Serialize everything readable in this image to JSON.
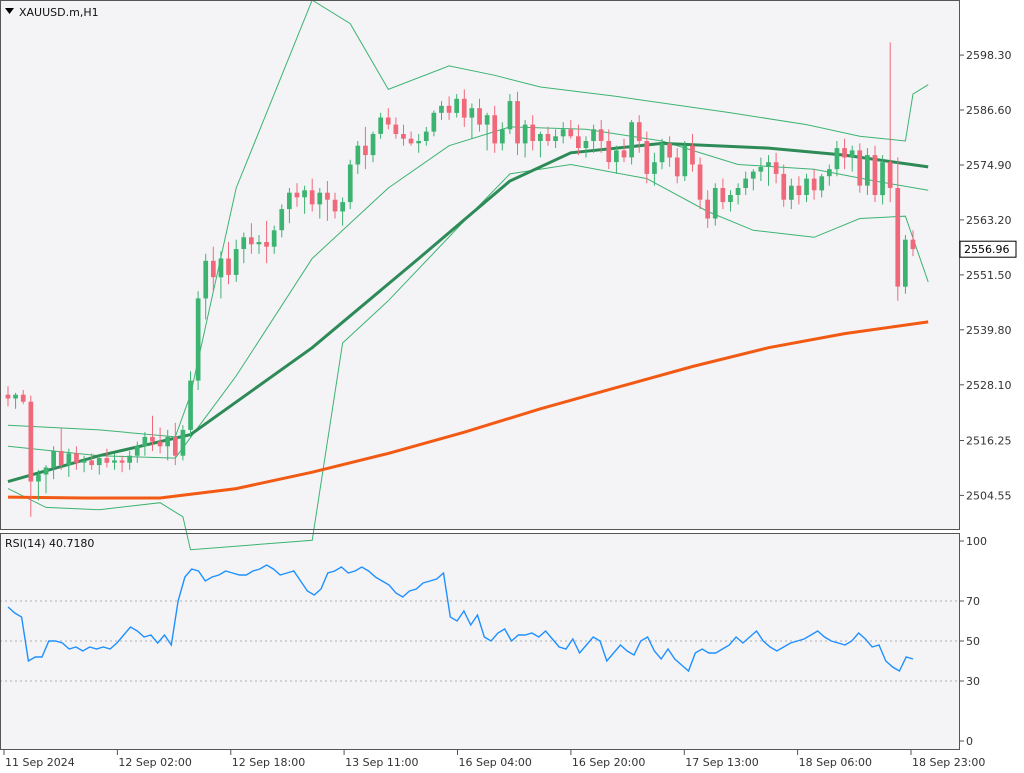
{
  "chart_data": [
    {
      "type": "candlestick",
      "title": "XAUUSD.m,H1",
      "symbol": "XAUUSD.m",
      "timeframe": "H1",
      "y_ticks": [
        2504.55,
        2516.25,
        2528.1,
        2539.8,
        2551.5,
        2563.2,
        2574.9,
        2586.6,
        2598.3
      ],
      "ylim": [
        2497.4,
        2609.6
      ],
      "x_labels": [
        "11 Sep 2024",
        "12 Sep 02:00",
        "12 Sep 18:00",
        "13 Sep 11:00",
        "16 Sep 04:00",
        "16 Sep 20:00",
        "17 Sep 13:00",
        "18 Sep 06:00",
        "18 Sep 23:00"
      ],
      "current_price": "2556.96",
      "colors": {
        "bull": "#3cb371",
        "bear": "#f0697a",
        "ma_fast": "#2e8b57",
        "ma_slow": "#f25a14",
        "bands": "#3cb371",
        "price_box": "#ffffff"
      },
      "candles": [
        [
          2526.0,
          2527.8,
          2523.5,
          2525.2
        ],
        [
          2525.2,
          2526.4,
          2523.0,
          2526.0
        ],
        [
          2526.0,
          2527.0,
          2524.0,
          2524.5
        ],
        [
          2524.5,
          2525.8,
          2500.0,
          2507.5
        ],
        [
          2507.5,
          2510.0,
          2503.5,
          2509.0
        ],
        [
          2509.0,
          2511.0,
          2505.0,
          2510.5
        ],
        [
          2510.5,
          2515.0,
          2508.0,
          2514.0
        ],
        [
          2514.0,
          2519.0,
          2510.0,
          2511.0
        ],
        [
          2511.0,
          2514.5,
          2508.5,
          2513.5
        ],
        [
          2513.5,
          2515.0,
          2510.0,
          2511.5
        ],
        [
          2511.5,
          2513.0,
          2509.5,
          2512.0
        ],
        [
          2512.0,
          2513.5,
          2510.0,
          2511.0
        ],
        [
          2511.0,
          2513.0,
          2509.0,
          2512.5
        ],
        [
          2512.5,
          2514.5,
          2510.5,
          2511.5
        ],
        [
          2511.5,
          2513.5,
          2510.0,
          2512.0
        ],
        [
          2512.0,
          2513.0,
          2509.5,
          2511.5
        ],
        [
          2511.5,
          2514.0,
          2510.0,
          2513.0
        ],
        [
          2513.0,
          2516.0,
          2511.5,
          2515.0
        ],
        [
          2515.0,
          2518.0,
          2513.0,
          2517.0
        ],
        [
          2517.0,
          2521.5,
          2514.0,
          2516.0
        ],
        [
          2516.0,
          2519.0,
          2513.5,
          2515.0
        ],
        [
          2515.0,
          2518.5,
          2512.0,
          2517.0
        ],
        [
          2517.0,
          2520.0,
          2511.0,
          2513.0
        ],
        [
          2513.0,
          2519.5,
          2512.0,
          2518.5
        ],
        [
          2518.5,
          2531.0,
          2517.0,
          2529.0
        ],
        [
          2529.0,
          2548.0,
          2527.0,
          2546.5
        ],
        [
          2546.5,
          2556.0,
          2542.0,
          2554.5
        ],
        [
          2554.5,
          2557.5,
          2548.0,
          2551.0
        ],
        [
          2551.0,
          2556.5,
          2546.5,
          2555.0
        ],
        [
          2555.0,
          2558.5,
          2549.5,
          2551.5
        ],
        [
          2551.5,
          2559.0,
          2550.0,
          2557.0
        ],
        [
          2557.0,
          2560.5,
          2554.0,
          2559.5
        ],
        [
          2559.5,
          2562.5,
          2556.0,
          2558.0
        ],
        [
          2558.0,
          2560.0,
          2556.0,
          2558.5
        ],
        [
          2558.5,
          2563.0,
          2554.0,
          2557.5
        ],
        [
          2557.5,
          2562.0,
          2556.0,
          2561.0
        ],
        [
          2561.0,
          2566.5,
          2559.5,
          2565.5
        ],
        [
          2565.5,
          2570.0,
          2562.5,
          2569.0
        ],
        [
          2569.0,
          2571.0,
          2566.0,
          2568.0
        ],
        [
          2568.0,
          2570.5,
          2564.5,
          2569.5
        ],
        [
          2569.5,
          2572.0,
          2565.0,
          2566.5
        ],
        [
          2566.5,
          2570.0,
          2563.5,
          2569.0
        ],
        [
          2569.0,
          2571.5,
          2563.0,
          2567.5
        ],
        [
          2567.5,
          2569.0,
          2563.5,
          2565.0
        ],
        [
          2565.0,
          2568.0,
          2562.0,
          2567.0
        ],
        [
          2567.0,
          2576.0,
          2565.5,
          2575.0
        ],
        [
          2575.0,
          2580.0,
          2573.0,
          2579.0
        ],
        [
          2579.0,
          2583.0,
          2574.0,
          2577.0
        ],
        [
          2577.0,
          2582.0,
          2575.5,
          2581.5
        ],
        [
          2581.5,
          2586.0,
          2580.5,
          2585.0
        ],
        [
          2585.0,
          2587.0,
          2582.5,
          2583.5
        ],
        [
          2583.5,
          2585.0,
          2580.5,
          2581.5
        ],
        [
          2581.5,
          2583.5,
          2579.0,
          2580.5
        ],
        [
          2580.5,
          2582.0,
          2579.0,
          2579.5
        ],
        [
          2579.5,
          2581.5,
          2577.5,
          2580.0
        ],
        [
          2580.0,
          2583.0,
          2579.0,
          2582.0
        ],
        [
          2582.0,
          2586.5,
          2581.0,
          2586.0
        ],
        [
          2586.0,
          2588.5,
          2584.5,
          2587.5
        ],
        [
          2587.5,
          2589.5,
          2584.5,
          2586.0
        ],
        [
          2586.0,
          2590.0,
          2585.0,
          2589.0
        ],
        [
          2589.0,
          2591.0,
          2583.0,
          2585.0
        ],
        [
          2585.0,
          2588.0,
          2580.5,
          2587.0
        ],
        [
          2587.0,
          2589.0,
          2582.0,
          2583.5
        ],
        [
          2583.5,
          2586.0,
          2578.0,
          2585.5
        ],
        [
          2585.5,
          2587.5,
          2577.5,
          2579.5
        ],
        [
          2579.5,
          2584.0,
          2578.0,
          2582.5
        ],
        [
          2582.5,
          2590.0,
          2581.5,
          2588.5
        ],
        [
          2588.5,
          2590.5,
          2577.0,
          2579.5
        ],
        [
          2579.5,
          2584.5,
          2576.5,
          2583.5
        ],
        [
          2583.5,
          2585.5,
          2578.0,
          2580.0
        ],
        [
          2580.0,
          2582.0,
          2576.5,
          2581.5
        ],
        [
          2581.5,
          2583.0,
          2579.0,
          2580.0
        ],
        [
          2580.0,
          2582.5,
          2578.5,
          2581.0
        ],
        [
          2581.0,
          2584.0,
          2579.5,
          2582.5
        ],
        [
          2582.5,
          2584.5,
          2580.5,
          2581.0
        ],
        [
          2581.0,
          2583.5,
          2577.0,
          2578.5
        ],
        [
          2578.5,
          2581.0,
          2576.5,
          2580.0
        ],
        [
          2580.0,
          2583.5,
          2577.5,
          2582.5
        ],
        [
          2582.5,
          2584.5,
          2577.5,
          2580.0
        ],
        [
          2580.0,
          2582.5,
          2574.0,
          2575.5
        ],
        [
          2575.5,
          2579.0,
          2573.0,
          2578.0
        ],
        [
          2578.0,
          2580.5,
          2575.5,
          2576.5
        ],
        [
          2576.5,
          2584.5,
          2575.0,
          2584.0
        ],
        [
          2584.0,
          2585.5,
          2577.5,
          2580.0
        ],
        [
          2580.0,
          2582.0,
          2571.0,
          2573.0
        ],
        [
          2573.0,
          2577.5,
          2570.5,
          2575.5
        ],
        [
          2575.5,
          2580.5,
          2574.0,
          2579.5
        ],
        [
          2579.5,
          2581.0,
          2574.5,
          2576.5
        ],
        [
          2576.5,
          2578.5,
          2571.0,
          2572.5
        ],
        [
          2572.5,
          2580.0,
          2571.5,
          2579.0
        ],
        [
          2579.0,
          2581.5,
          2573.5,
          2575.0
        ],
        [
          2575.0,
          2576.5,
          2565.5,
          2567.5
        ],
        [
          2567.5,
          2569.5,
          2561.5,
          2563.5
        ],
        [
          2563.5,
          2571.0,
          2562.0,
          2570.0
        ],
        [
          2570.0,
          2572.0,
          2565.5,
          2567.0
        ],
        [
          2567.0,
          2569.5,
          2565.0,
          2568.5
        ],
        [
          2568.5,
          2571.0,
          2566.5,
          2570.0
        ],
        [
          2570.0,
          2573.5,
          2568.5,
          2572.0
        ],
        [
          2572.0,
          2574.0,
          2569.5,
          2573.5
        ],
        [
          2573.5,
          2576.5,
          2571.5,
          2574.5
        ],
        [
          2574.5,
          2577.0,
          2570.5,
          2575.5
        ],
        [
          2575.5,
          2577.5,
          2571.0,
          2573.0
        ],
        [
          2573.0,
          2575.0,
          2566.0,
          2567.5
        ],
        [
          2567.5,
          2572.0,
          2565.5,
          2570.5
        ],
        [
          2570.5,
          2572.5,
          2566.5,
          2568.5
        ],
        [
          2568.5,
          2573.0,
          2567.0,
          2572.0
        ],
        [
          2572.0,
          2574.0,
          2567.5,
          2569.5
        ],
        [
          2569.5,
          2573.0,
          2568.0,
          2572.5
        ],
        [
          2572.5,
          2575.0,
          2570.5,
          2574.0
        ],
        [
          2574.0,
          2580.0,
          2572.5,
          2578.5
        ],
        [
          2578.5,
          2580.5,
          2574.0,
          2576.5
        ],
        [
          2576.5,
          2579.0,
          2573.5,
          2578.0
        ],
        [
          2578.0,
          2579.5,
          2569.0,
          2570.5
        ],
        [
          2570.5,
          2578.5,
          2568.5,
          2577.0
        ],
        [
          2577.0,
          2579.0,
          2567.0,
          2568.5
        ],
        [
          2568.5,
          2577.0,
          2566.5,
          2575.5
        ],
        [
          2575.5,
          2601.0,
          2567.0,
          2570.0
        ],
        [
          2570.0,
          2576.5,
          2546.0,
          2549.0
        ],
        [
          2549.0,
          2560.0,
          2547.5,
          2559.0
        ],
        [
          2559.0,
          2561.0,
          2555.5,
          2557.0
        ]
      ],
      "ma_fast": [
        [
          0,
          2507.5
        ],
        [
          12,
          2513.0
        ],
        [
          24,
          2517.5
        ],
        [
          40,
          2536.0
        ],
        [
          54,
          2555.0
        ],
        [
          66,
          2571.5
        ],
        [
          74,
          2577.5
        ],
        [
          86,
          2579.5
        ],
        [
          100,
          2578.5
        ],
        [
          110,
          2577.0
        ],
        [
          121,
          2574.5
        ]
      ],
      "ma_slow": [
        [
          0,
          2504.2
        ],
        [
          10,
          2504.0
        ],
        [
          20,
          2504.0
        ],
        [
          30,
          2506.0
        ],
        [
          40,
          2509.5
        ],
        [
          50,
          2513.5
        ],
        [
          60,
          2518.0
        ],
        [
          70,
          2523.0
        ],
        [
          80,
          2527.5
        ],
        [
          90,
          2532.0
        ],
        [
          100,
          2536.0
        ],
        [
          110,
          2539.0
        ],
        [
          121,
          2541.5
        ]
      ],
      "bb_upper": [
        [
          0,
          2519.5
        ],
        [
          12,
          2518.5
        ],
        [
          22,
          2517.0
        ],
        [
          24,
          2526.0
        ],
        [
          30,
          2570.0
        ],
        [
          40,
          2610.0
        ],
        [
          45,
          2605.0
        ],
        [
          50,
          2591.0
        ],
        [
          58,
          2596.0
        ],
        [
          64,
          2594.0
        ],
        [
          70,
          2591.5
        ],
        [
          80,
          2589.5
        ],
        [
          95,
          2586.0
        ],
        [
          105,
          2583.5
        ],
        [
          112,
          2581.0
        ],
        [
          118,
          2580.0
        ],
        [
          119,
          2590.0
        ],
        [
          121,
          2592.0
        ]
      ],
      "bb_middle": [
        [
          0,
          2515.0
        ],
        [
          12,
          2513.0
        ],
        [
          22,
          2512.5
        ],
        [
          30,
          2530.0
        ],
        [
          40,
          2555.0
        ],
        [
          50,
          2570.0
        ],
        [
          58,
          2579.0
        ],
        [
          66,
          2583.0
        ],
        [
          76,
          2582.5
        ],
        [
          86,
          2580.0
        ],
        [
          96,
          2575.0
        ],
        [
          106,
          2574.0
        ],
        [
          114,
          2571.5
        ],
        [
          121,
          2569.5
        ]
      ],
      "bb_lower": [
        [
          0,
          2506.0
        ],
        [
          5,
          2502.0
        ],
        [
          12,
          2501.5
        ],
        [
          20,
          2503.0
        ],
        [
          23,
          2500.0
        ],
        [
          24,
          2493.0
        ],
        [
          40,
          2495.0
        ],
        [
          44,
          2537.0
        ],
        [
          50,
          2546.0
        ],
        [
          60,
          2563.0
        ],
        [
          66,
          2573.0
        ],
        [
          74,
          2575.0
        ],
        [
          84,
          2572.0
        ],
        [
          92,
          2565.0
        ],
        [
          98,
          2561.0
        ],
        [
          106,
          2559.5
        ],
        [
          112,
          2563.5
        ],
        [
          118,
          2564.0
        ],
        [
          121,
          2550.0
        ]
      ]
    },
    {
      "type": "line",
      "title": "RSI(14) 40.7180",
      "y_ticks": [
        0,
        30,
        50,
        70,
        100
      ],
      "ylim": [
        0,
        100
      ],
      "levels": [
        30,
        50,
        70
      ],
      "color": "#1e90ff",
      "values": [
        67,
        64,
        62,
        40,
        42,
        42,
        50,
        50,
        49,
        46,
        47,
        45,
        47,
        46,
        47,
        46,
        49,
        53,
        57,
        55,
        52,
        53,
        49,
        53,
        48,
        70,
        82,
        86,
        85,
        80,
        82,
        83,
        85,
        84,
        83,
        83,
        85,
        86,
        88,
        86,
        83,
        84,
        85,
        80,
        75,
        73,
        76,
        84,
        85,
        87,
        84,
        85,
        87,
        85,
        82,
        80,
        78,
        74,
        72,
        75,
        76,
        79,
        80,
        81,
        84,
        62,
        60,
        65,
        58,
        63,
        52,
        50,
        54,
        56,
        50,
        53,
        53,
        54,
        52,
        55,
        51,
        47,
        46,
        51,
        44,
        48,
        52,
        50,
        40,
        44,
        48,
        45,
        43,
        50,
        52,
        45,
        41,
        46,
        41,
        38,
        35,
        44,
        46,
        44,
        44,
        46,
        48,
        52,
        49,
        52,
        55,
        50,
        47,
        45,
        47,
        49,
        50,
        51,
        53,
        55,
        52,
        50,
        49,
        48,
        50,
        54,
        51,
        47,
        48,
        40,
        37,
        35,
        42,
        41
      ]
    }
  ]
}
